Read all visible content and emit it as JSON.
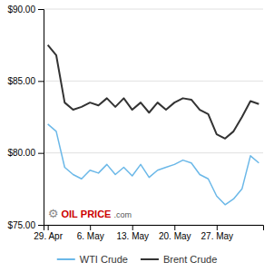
{
  "chart_data": {
    "type": "line",
    "x": [
      0,
      1,
      2,
      3,
      4,
      5,
      6,
      7,
      8,
      9,
      10,
      11,
      12,
      13,
      14,
      15,
      16,
      17,
      18,
      19,
      20,
      21,
      22,
      23,
      24,
      25
    ],
    "series": [
      {
        "name": "WTI Crude",
        "color": "#6bb8e8",
        "values": [
          82.0,
          81.5,
          79.0,
          78.5,
          78.2,
          78.8,
          78.6,
          79.2,
          78.5,
          79.0,
          78.4,
          79.2,
          78.3,
          78.8,
          79.0,
          79.2,
          79.5,
          79.3,
          78.5,
          78.2,
          77.0,
          76.4,
          76.8,
          77.5,
          79.8,
          79.3
        ]
      },
      {
        "name": "Brent Crude",
        "color": "#333333",
        "values": [
          87.5,
          86.8,
          83.5,
          83.0,
          83.2,
          83.5,
          83.3,
          83.8,
          83.2,
          83.8,
          83.0,
          83.5,
          82.8,
          83.5,
          83.0,
          83.5,
          83.8,
          83.7,
          83.0,
          82.7,
          81.3,
          81.0,
          81.5,
          82.5,
          83.6,
          83.4
        ]
      }
    ],
    "xlim": [
      -0.5,
      25.5
    ],
    "xticks": [
      {
        "value": 0,
        "label": "29. Apr"
      },
      {
        "value": 5,
        "label": "6. May"
      },
      {
        "value": 10,
        "label": "13. May"
      },
      {
        "value": 15,
        "label": "20. May"
      },
      {
        "value": 20,
        "label": "27. May"
      }
    ],
    "ylim": [
      75.0,
      90.0
    ],
    "yticks": [
      {
        "value": 75.0,
        "label": "$75.00"
      },
      {
        "value": 80.0,
        "label": "$80.00"
      },
      {
        "value": 85.0,
        "label": "$85.00"
      },
      {
        "value": 90.0,
        "label": "$90.00"
      }
    ],
    "grid": true,
    "legend": "bottom",
    "annotations": [
      {
        "text": "⚙",
        "color": "#888888"
      },
      {
        "text": "OIL",
        "color": "#cc0000"
      },
      {
        "text": "PRICE",
        "color": "#cc0000"
      },
      {
        "text": ".com",
        "color": "#555555"
      }
    ]
  }
}
